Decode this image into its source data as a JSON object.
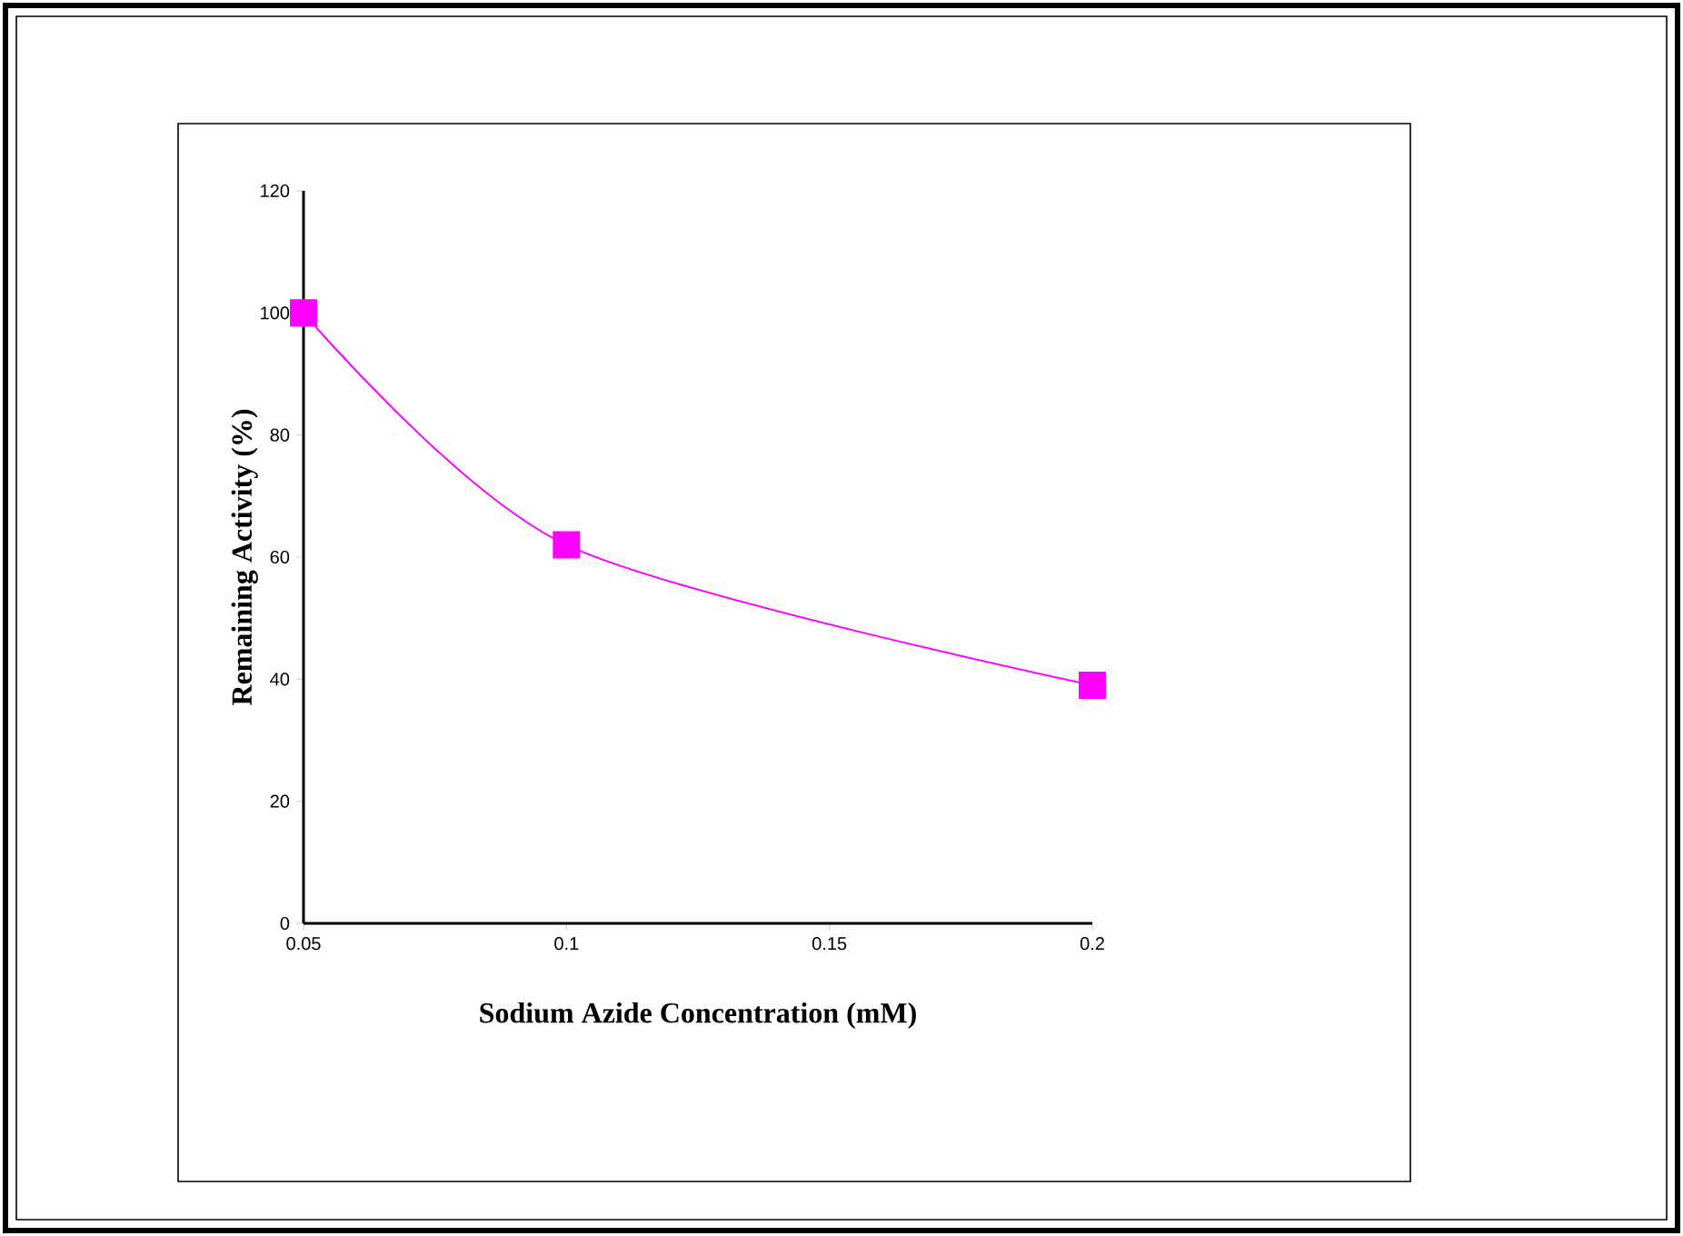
{
  "chart_data": {
    "type": "line",
    "xlabel": "Sodium Azide Concentration (mM)",
    "ylabel": "Remaining Activity  (%)",
    "x": [
      0.05,
      0.1,
      0.2
    ],
    "values": [
      100,
      62,
      39
    ],
    "color": "#ff00ff",
    "marker": "square",
    "xlim": [
      0.05,
      0.2
    ],
    "xticks": [
      0.05,
      0.1,
      0.15,
      0.2
    ],
    "ylim": [
      0,
      120
    ],
    "yticks": [
      0,
      20,
      40,
      60,
      80,
      100,
      120
    ]
  }
}
